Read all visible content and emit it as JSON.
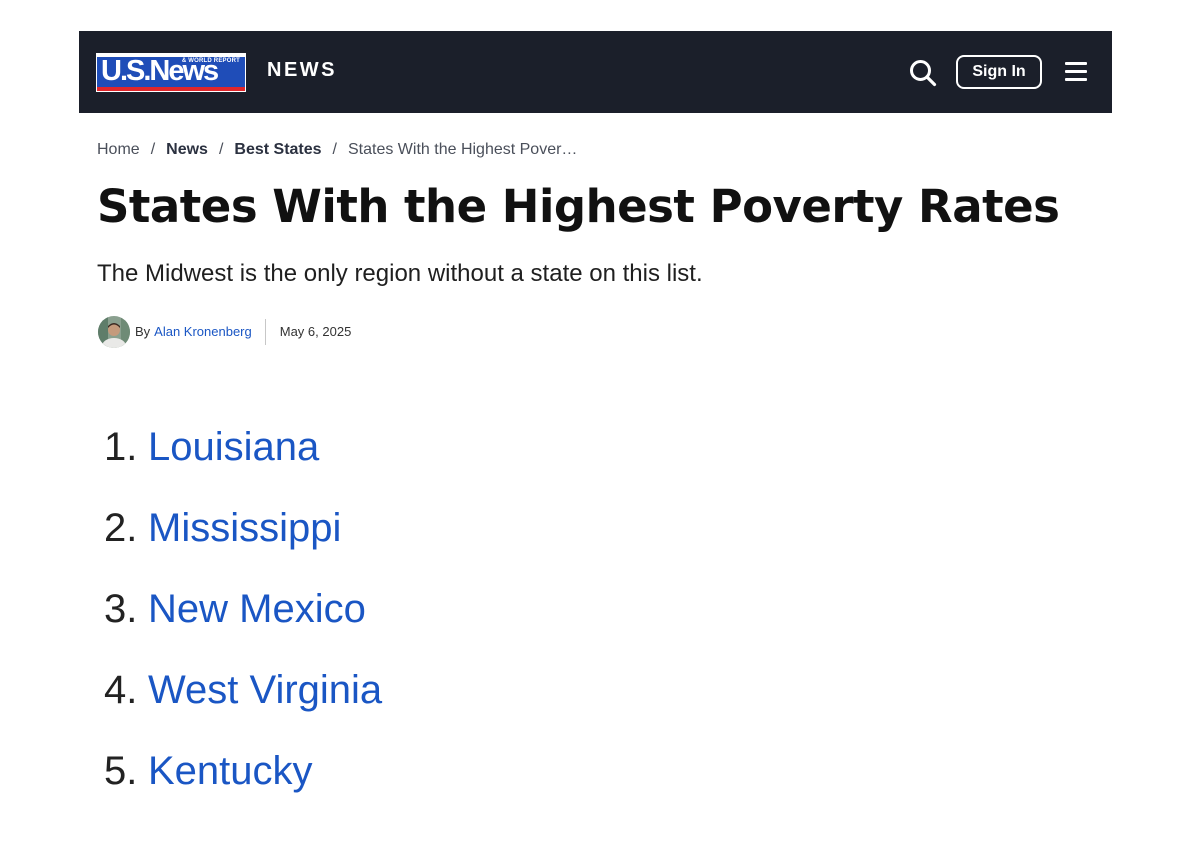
{
  "header": {
    "logo_main": "U.S.News",
    "logo_sub": "& WORLD REPORT",
    "section_label": "NEWS",
    "search_icon": "search-icon",
    "signin_label": "Sign In",
    "menu_icon": "hamburger-menu-icon",
    "colors": {
      "background": "#1b1f2a",
      "logo_blue": "#1f4db8",
      "logo_red": "#e0262b"
    }
  },
  "breadcrumb": {
    "items": [
      "Home",
      "News",
      "Best States",
      "States With the Highest Pover…"
    ],
    "separator": "/"
  },
  "article": {
    "title": "States With the Highest Poverty Rates",
    "subtitle": "The Midwest is the only region without a state on this list.",
    "byline_prefix": "By",
    "author": "Alan Kronenberg",
    "date": "May 6, 2025"
  },
  "ranking": [
    {
      "rank": "1.",
      "state": "Louisiana"
    },
    {
      "rank": "2.",
      "state": "Mississippi"
    },
    {
      "rank": "3.",
      "state": "New Mexico"
    },
    {
      "rank": "4.",
      "state": "West Virginia"
    },
    {
      "rank": "5.",
      "state": "Kentucky"
    }
  ],
  "colors": {
    "link": "#1a56c4"
  }
}
